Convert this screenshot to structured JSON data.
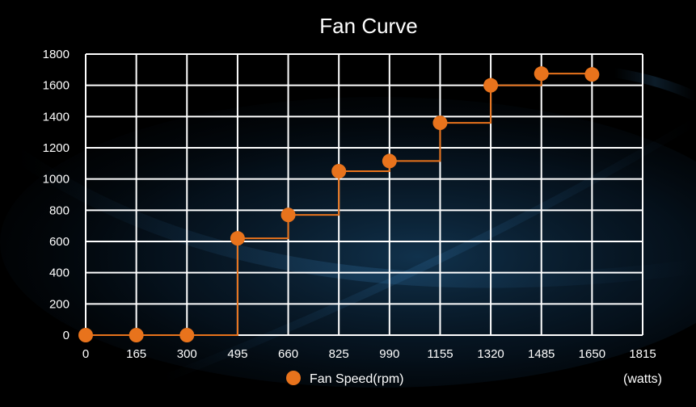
{
  "chart_data": {
    "type": "line",
    "title": "Fan Curve",
    "x_unit_label": "(watts)",
    "legend_position": "bottom",
    "grid": true,
    "x_ticks": [
      0,
      165,
      300,
      495,
      660,
      825,
      990,
      1155,
      1320,
      1485,
      1650,
      1815
    ],
    "y_ticks": [
      0,
      200,
      400,
      600,
      800,
      1000,
      1200,
      1400,
      1600,
      1800
    ],
    "series": [
      {
        "name": "Fan Speed(rpm)",
        "color": "#e8731c",
        "step": true,
        "points": [
          {
            "x": 0,
            "y": 0
          },
          {
            "x": 165,
            "y": 0
          },
          {
            "x": 300,
            "y": 0
          },
          {
            "x": 495,
            "y": 620
          },
          {
            "x": 660,
            "y": 770
          },
          {
            "x": 825,
            "y": 1050
          },
          {
            "x": 990,
            "y": 1115
          },
          {
            "x": 1155,
            "y": 1360
          },
          {
            "x": 1320,
            "y": 1600
          },
          {
            "x": 1485,
            "y": 1675
          },
          {
            "x": 1650,
            "y": 1670
          }
        ]
      }
    ]
  },
  "colors": {
    "background": "#000000",
    "grid": "#ffffff",
    "text": "#ffffff",
    "accent_glow": "#1b4f7a"
  }
}
